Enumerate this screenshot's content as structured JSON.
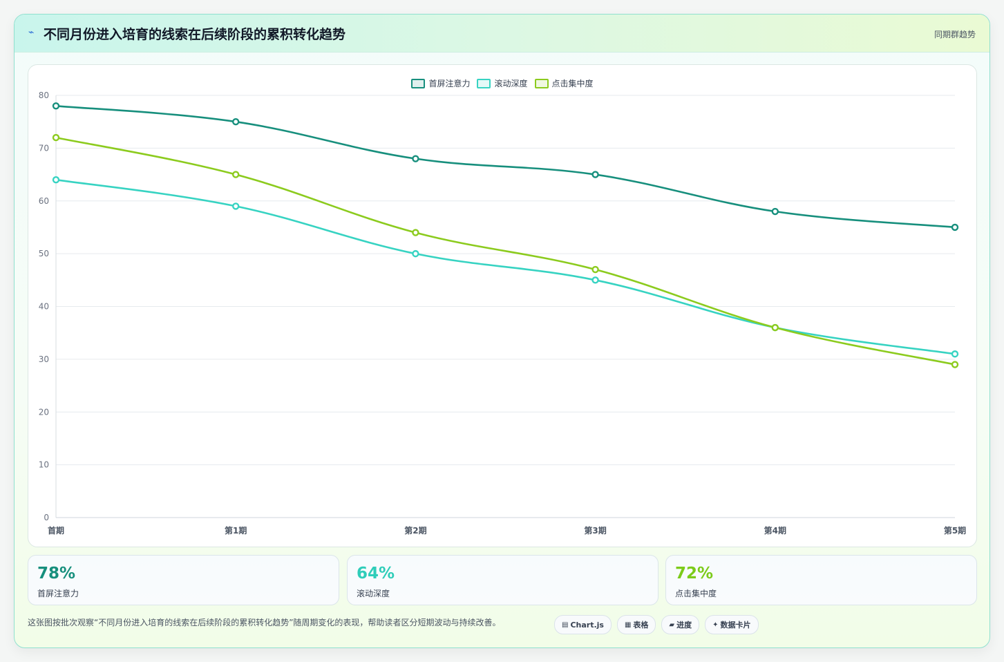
{
  "header": {
    "title": "不同月份进入培育的线索在后续阶段的累积转化趋势",
    "icon": "lightning-icon",
    "tag": "同期群趋势"
  },
  "chart_data": {
    "type": "line",
    "categories": [
      "首期",
      "第1期",
      "第2期",
      "第3期",
      "第4期",
      "第5期"
    ],
    "ylim": [
      0,
      80
    ],
    "yticks": [
      0,
      10,
      20,
      30,
      40,
      50,
      60,
      70,
      80
    ],
    "grid": true,
    "legend_position": "top-center",
    "series": [
      {
        "name": "首屏注意力",
        "color": "#178f7d",
        "values": [
          78,
          75,
          68,
          65,
          58,
          55
        ]
      },
      {
        "name": "滚动深度",
        "color": "#37d3c2",
        "values": [
          64,
          59,
          50,
          45,
          36,
          31
        ]
      },
      {
        "name": "点击集中度",
        "color": "#8ccb1e",
        "values": [
          72,
          65,
          54,
          47,
          36,
          29
        ]
      }
    ]
  },
  "stats": [
    {
      "value": "78%",
      "label": "首屏注意力",
      "color": "#178f7d"
    },
    {
      "value": "64%",
      "label": "滚动深度",
      "color": "#2fcdb9"
    },
    {
      "value": "72%",
      "label": "点击集中度",
      "color": "#7ccb1a"
    }
  ],
  "footer": {
    "note": "这张图按批次观察“不同月份进入培育的线索在后续阶段的累积转化趋势”随周期变化的表现，帮助读者区分短期波动与持续改善。",
    "chips": [
      {
        "icon": "▤",
        "label": "Chart.js"
      },
      {
        "icon": "▦",
        "label": "表格"
      },
      {
        "icon": "▰",
        "label": "进度"
      },
      {
        "icon": "✦",
        "label": "数据卡片"
      }
    ]
  }
}
